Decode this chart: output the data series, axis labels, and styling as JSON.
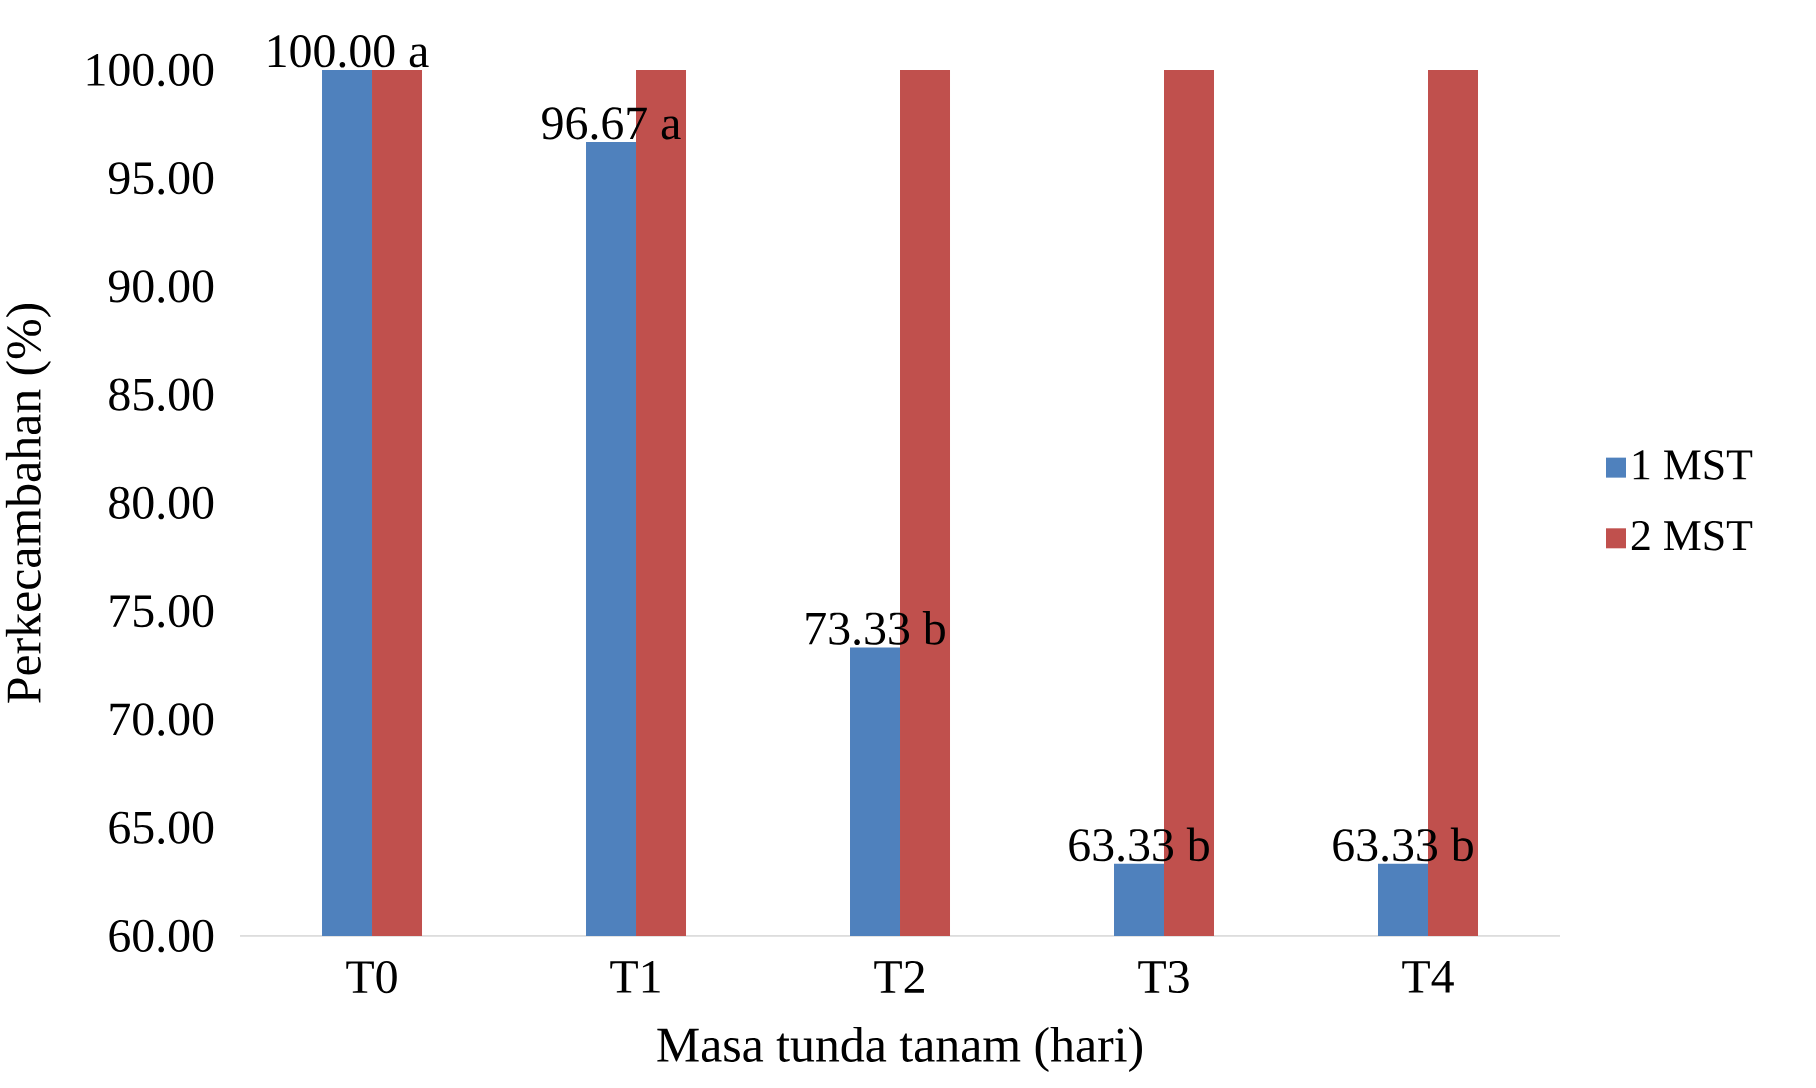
{
  "chart_data": {
    "type": "bar",
    "xlabel": "Masa tunda tanam (hari)",
    "ylabel": "Perkecambahan (%)",
    "categories": [
      "T0",
      "T1",
      "T2",
      "T3",
      "T4"
    ],
    "series": [
      {
        "name": "1 MST",
        "color": "#4f81bd",
        "values": [
          100,
          96.67,
          73.33,
          63.33,
          63.33
        ],
        "value_labels": [
          "100.00 a",
          "96.67 a",
          "73.33 b",
          "63.33 b",
          "63.33 b"
        ]
      },
      {
        "name": "2 MST",
        "color": "#c0504d",
        "values": [
          100,
          100,
          100,
          100,
          100
        ]
      }
    ],
    "ylim": [
      60,
      100
    ],
    "yticks": [
      {
        "value": 60,
        "label": "60.00"
      },
      {
        "value": 65,
        "label": "65.00"
      },
      {
        "value": 70,
        "label": "70.00"
      },
      {
        "value": 75,
        "label": "75.00"
      },
      {
        "value": 80,
        "label": "80.00"
      },
      {
        "value": 85,
        "label": "85.00"
      },
      {
        "value": 90,
        "label": "90.00"
      },
      {
        "value": 95,
        "label": "95.00"
      },
      {
        "value": 100,
        "label": "100.00"
      }
    ],
    "grid": false,
    "legend": "right"
  }
}
